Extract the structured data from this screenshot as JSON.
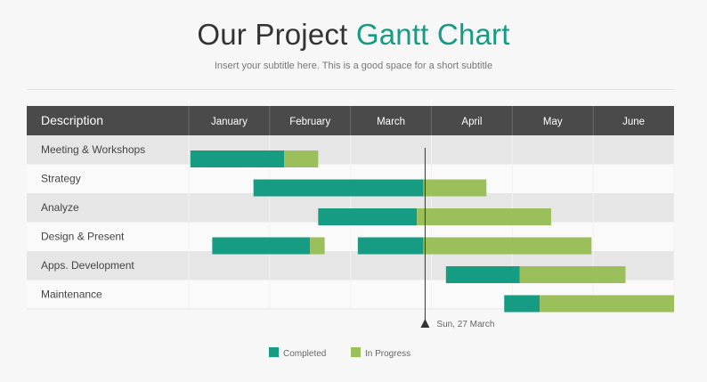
{
  "header": {
    "title_main": "Our Project",
    "title_accent": "Gantt Chart",
    "subtitle": "Insert your subtitle here. This is a good space for a short subtitle"
  },
  "colors": {
    "completed": "#169c83",
    "in_progress": "#9bbf5a",
    "header_bg": "#4a4a4a",
    "row_dark": "#e6e6e6",
    "row_light": "#fafafa"
  },
  "chart_data": {
    "type": "gantt",
    "description_header": "Description",
    "months": [
      "January",
      "February",
      "March",
      "April",
      "May",
      "June"
    ],
    "marker": {
      "label": "Sun, 27 March",
      "month_pos": 2.9
    },
    "legend": [
      {
        "key": "completed",
        "label": "Completed"
      },
      {
        "key": "in_progress",
        "label": "In Progress"
      }
    ],
    "tasks": [
      {
        "name": "Meeting & Workshops",
        "bars": [
          {
            "status": "completed",
            "start": 0.02,
            "end": 1.18
          },
          {
            "status": "in_progress",
            "start": 1.18,
            "end": 1.6
          }
        ]
      },
      {
        "name": "Strategy",
        "bars": [
          {
            "status": "completed",
            "start": 0.8,
            "end": 2.9
          },
          {
            "status": "in_progress",
            "start": 2.9,
            "end": 3.68
          }
        ]
      },
      {
        "name": "Analyze",
        "bars": [
          {
            "status": "completed",
            "start": 1.6,
            "end": 2.82
          },
          {
            "status": "in_progress",
            "start": 2.82,
            "end": 4.48
          }
        ]
      },
      {
        "name": "Design & Present",
        "bars": [
          {
            "status": "completed",
            "start": 0.29,
            "end": 1.5
          },
          {
            "status": "in_progress",
            "start": 1.5,
            "end": 1.68
          },
          {
            "status": "completed",
            "start": 2.09,
            "end": 2.9
          },
          {
            "status": "in_progress",
            "start": 2.9,
            "end": 4.98
          }
        ]
      },
      {
        "name": "Apps. Development",
        "bars": [
          {
            "status": "completed",
            "start": 3.18,
            "end": 4.09
          },
          {
            "status": "in_progress",
            "start": 4.09,
            "end": 5.4
          }
        ]
      },
      {
        "name": "Maintenance",
        "bars": [
          {
            "status": "completed",
            "start": 3.9,
            "end": 4.34
          },
          {
            "status": "in_progress",
            "start": 4.34,
            "end": 6.0
          }
        ]
      }
    ]
  }
}
